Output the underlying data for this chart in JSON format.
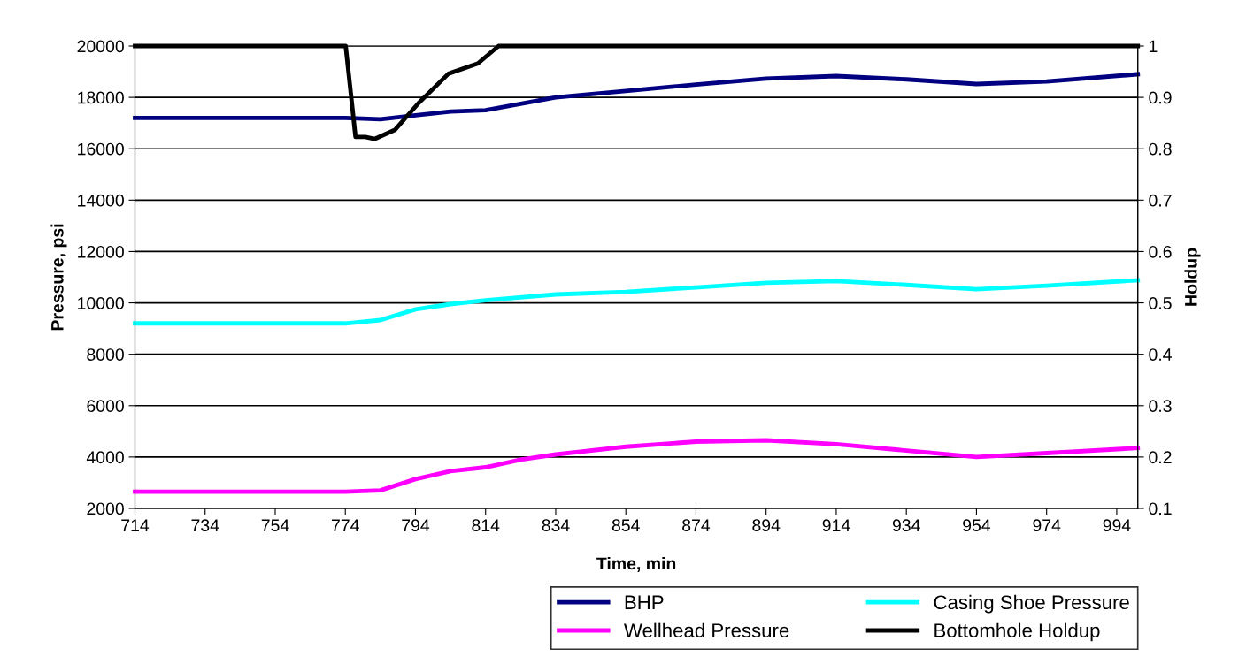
{
  "chart_data": {
    "type": "line",
    "xlabel": "Time, min",
    "ylabel": "Pressure, psi",
    "y2label": "Holdup",
    "xlim": [
      714,
      1000
    ],
    "xticks": [
      714,
      734,
      754,
      774,
      794,
      814,
      834,
      854,
      874,
      894,
      914,
      934,
      954,
      974,
      994
    ],
    "ylim": [
      2000,
      20000
    ],
    "yticks": [
      2000,
      4000,
      6000,
      8000,
      10000,
      12000,
      14000,
      16000,
      18000,
      20000
    ],
    "y2lim": [
      0.1,
      1
    ],
    "y2ticks": [
      0.1,
      0.2,
      0.3,
      0.4,
      0.5,
      0.6,
      0.7,
      0.8,
      0.9,
      1
    ],
    "grid": "y",
    "legend": "bottom",
    "marker": "none",
    "line_style": "solid",
    "series": [
      {
        "name": "BHP",
        "color": "#000080",
        "x": [
          714,
          734,
          754,
          774,
          784,
          794,
          804,
          814,
          834,
          854,
          874,
          894,
          914,
          934,
          954,
          974,
          1000
        ],
        "values": [
          17200,
          17200,
          17200,
          17200,
          17150,
          17300,
          17450,
          17500,
          18000,
          18250,
          18500,
          18730,
          18830,
          18700,
          18520,
          18620,
          18900
        ]
      },
      {
        "name": "Wellhead Pressure",
        "color": "#ff00ff",
        "x": [
          714,
          734,
          754,
          774,
          784,
          794,
          804,
          814,
          824,
          834,
          854,
          874,
          894,
          914,
          934,
          954,
          974,
          1000
        ],
        "values": [
          2650,
          2650,
          2650,
          2650,
          2700,
          3140,
          3450,
          3600,
          3900,
          4100,
          4400,
          4600,
          4650,
          4500,
          4250,
          4000,
          4150,
          4350
        ]
      },
      {
        "name": "Casing Shoe Pressure",
        "color": "#00ffff",
        "x": [
          714,
          734,
          754,
          774,
          784,
          794,
          804,
          814,
          834,
          854,
          874,
          894,
          914,
          934,
          954,
          974,
          1000
        ],
        "values": [
          9200,
          9200,
          9200,
          9200,
          9330,
          9750,
          9950,
          10100,
          10330,
          10430,
          10600,
          10780,
          10850,
          10700,
          10530,
          10670,
          10880
        ]
      },
      {
        "name": "Bottomhole Holdup",
        "color": "#000000",
        "axis": "y2",
        "x": [
          714,
          774.1,
          776.9,
          779.7,
          782.3,
          788.2,
          794.9,
          803.4,
          811.8,
          817.7,
          1000
        ],
        "values": [
          1,
          1,
          0.823,
          0.823,
          0.819,
          0.837,
          0.889,
          0.946,
          0.966,
          1,
          1
        ]
      }
    ]
  }
}
